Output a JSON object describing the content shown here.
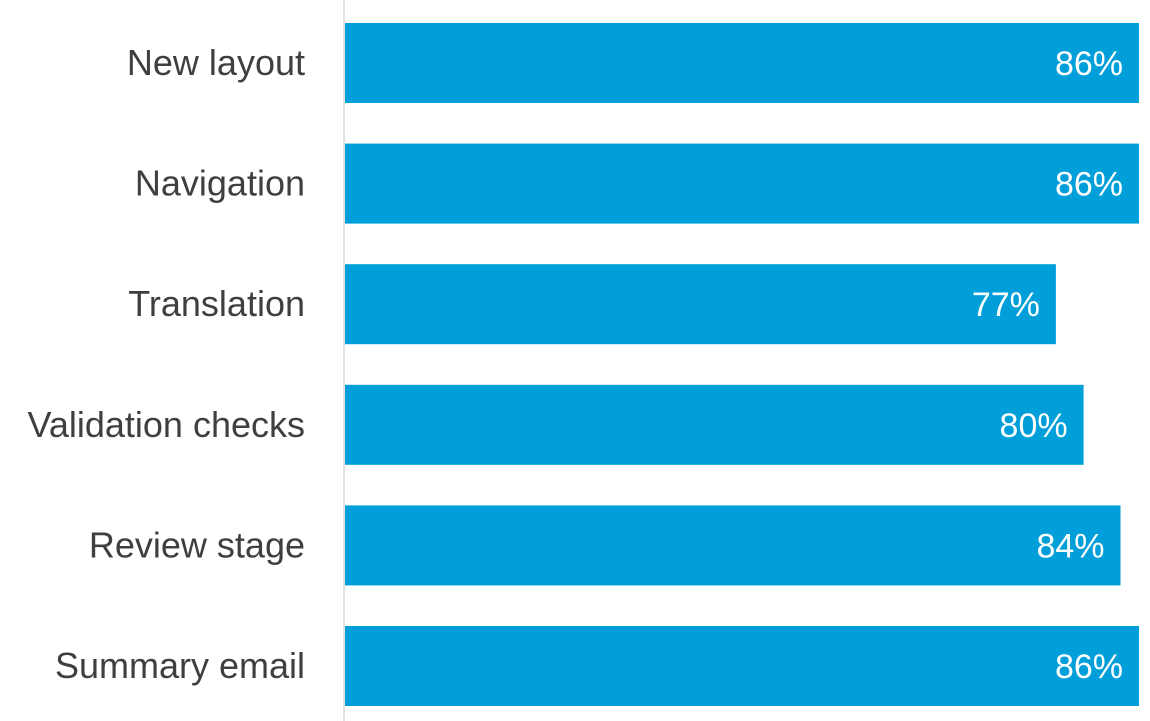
{
  "chart_data": {
    "type": "bar",
    "orientation": "horizontal",
    "categories": [
      "New layout",
      "Navigation",
      "Translation",
      "Validation checks",
      "Review stage",
      "Summary email"
    ],
    "values": [
      86,
      86,
      77,
      80,
      84,
      86
    ],
    "value_labels": [
      "86%",
      "86%",
      "77%",
      "80%",
      "84%",
      "86%"
    ],
    "unit": "%",
    "xlim": [
      0,
      86
    ],
    "bar_color": "#009fd9",
    "axis_color": "#d9d9d9",
    "label_color": "#3f3f3f",
    "value_label_color": "#ffffff",
    "grid": false,
    "legend": false
  }
}
